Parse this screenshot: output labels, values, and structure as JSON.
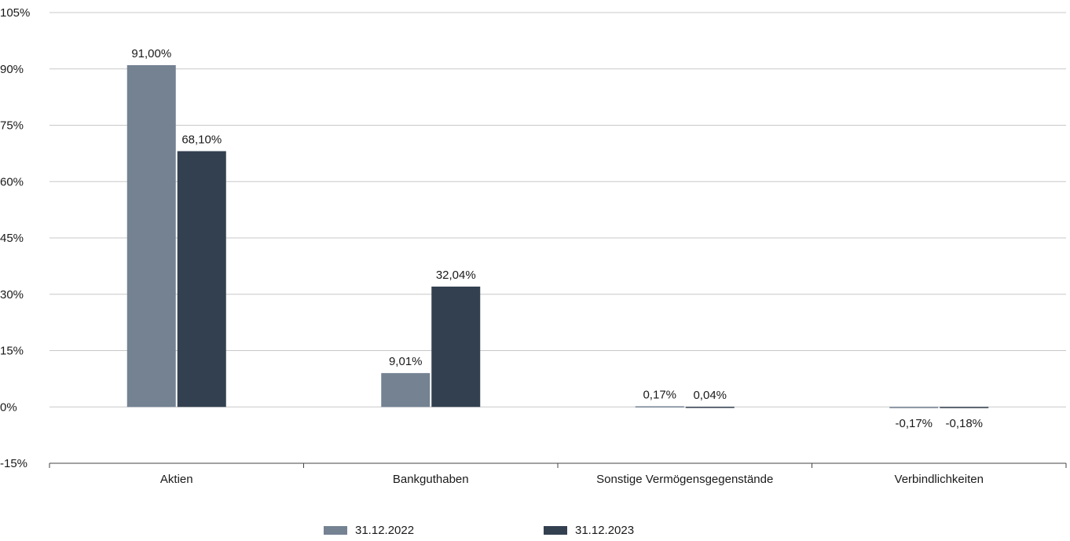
{
  "chart_data": {
    "type": "bar",
    "categories": [
      "Aktien",
      "Bankguthaben",
      "Sonstige Vermögensgegenstände",
      "Verbindlichkeiten"
    ],
    "series": [
      {
        "name": "31.12.2022",
        "values": [
          91.0,
          9.01,
          0.17,
          -0.17
        ],
        "labels": [
          "91,00%",
          "9,01%",
          "0,17%",
          "-0,17%"
        ],
        "color": "#748292"
      },
      {
        "name": "31.12.2023",
        "values": [
          68.1,
          32.04,
          0.04,
          -0.18
        ],
        "labels": [
          "68,10%",
          "32,04%",
          "0,04%",
          "-0,18%"
        ],
        "color": "#334050"
      }
    ],
    "yticks": [
      "105%",
      "90%",
      "75%",
      "60%",
      "45%",
      "30%",
      "15%",
      "0%",
      "-15%"
    ],
    "ylim": [
      -15,
      105
    ],
    "grid": true,
    "legend_position": "bottom",
    "title": "",
    "xlabel": "",
    "ylabel": ""
  }
}
